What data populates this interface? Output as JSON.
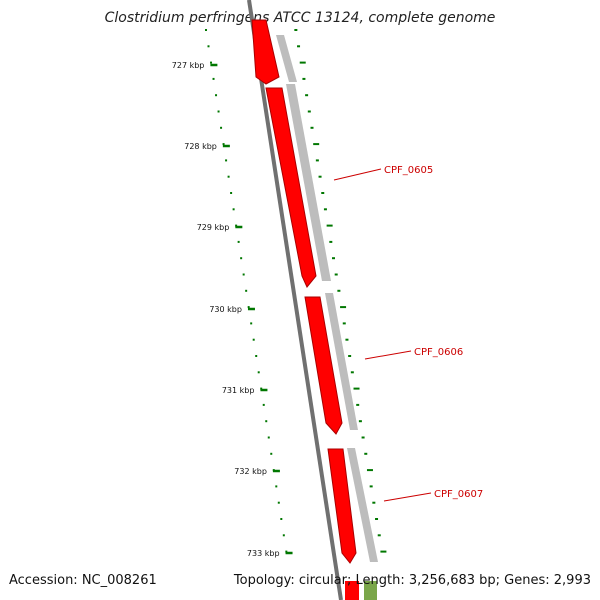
{
  "title": "Clostridium perfringens ATCC 13124, complete genome",
  "footer": {
    "accession": "Accession: NC_008261",
    "summary": "Topology: circular; Length: 3,256,683 bp; Genes: 2,993"
  },
  "ruler": {
    "labels": [
      "727 kbp",
      "728 kbp",
      "729 kbp",
      "730 kbp",
      "731 kbp",
      "732 kbp",
      "733 kbp"
    ]
  },
  "genes": [
    {
      "label": "",
      "strand": "forward"
    },
    {
      "label": "CPF_0605",
      "strand": "forward"
    },
    {
      "label": "CPF_0606",
      "strand": "forward"
    },
    {
      "label": "CPF_0607",
      "strand": "forward"
    }
  ],
  "colors": {
    "gene": "#ff0000",
    "gene_dark": "#b00000",
    "label": "#cc0000",
    "backbone": "#707070",
    "gc_track": "#b4b4b4",
    "ticks": "#007700",
    "green_feature": "#7aa64a"
  }
}
